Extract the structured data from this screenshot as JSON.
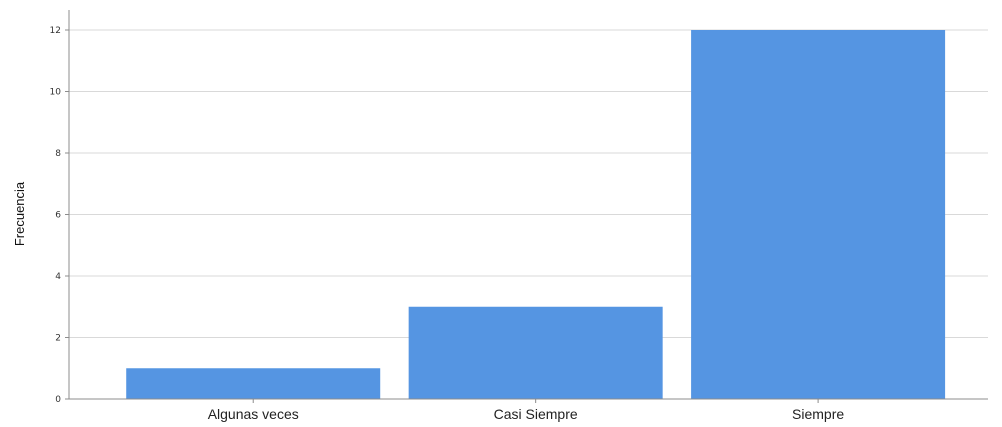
{
  "chart_data": {
    "type": "bar",
    "title": "",
    "xlabel": "",
    "ylabel": "Frecuencia",
    "categories": [
      "Algunas veces",
      "Casi Siempre",
      "Siempre"
    ],
    "values": [
      1,
      3,
      12
    ],
    "ylim": [
      0,
      12
    ],
    "yticks": [
      0,
      2,
      4,
      6,
      8,
      10,
      12
    ],
    "grid": true,
    "legend": "none",
    "colors": {
      "bar": "#5595e2",
      "grid": "#d9d9d9",
      "axis": "#8c8c8c"
    }
  }
}
